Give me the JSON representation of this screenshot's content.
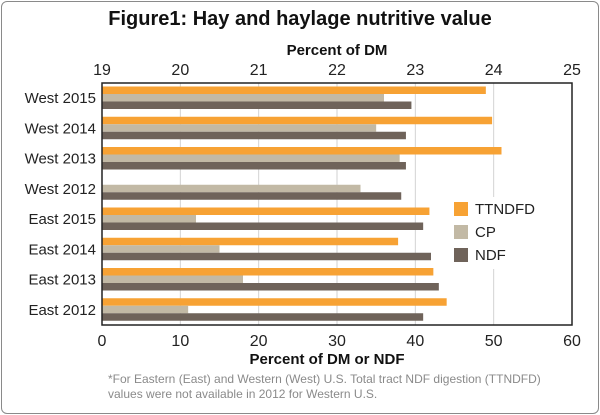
{
  "title": "Figure1: Hay and haylage nutritive value",
  "footnote": "*For Eastern (East) and Western (West) U.S. Total tract NDF digestion (TTNDFD) values were not available in 2012 for Western U.S.",
  "chart_data": {
    "type": "bar",
    "orientation": "horizontal",
    "categories": [
      "West 2015",
      "West 2014",
      "West 2013",
      "West 2012",
      "East 2015",
      "East 2014",
      "East 2013",
      "East 2012"
    ],
    "series": [
      {
        "name": "TTNDFD",
        "color": "#f7a234",
        "axis": "bottom",
        "values": [
          49,
          49.8,
          51,
          null,
          41.8,
          37.8,
          42.3,
          44
        ]
      },
      {
        "name": "CP",
        "color": "#c2b9a5",
        "axis": "top",
        "values": [
          22.6,
          22.5,
          22.8,
          22.3,
          20.2,
          20.5,
          20.8,
          20.1
        ]
      },
      {
        "name": "NDF",
        "color": "#6f635a",
        "axis": "bottom",
        "values": [
          39.5,
          38.8,
          38.8,
          38.2,
          41,
          42,
          43,
          41
        ]
      }
    ],
    "top_axis": {
      "label": "Percent of DM",
      "range": [
        19,
        25
      ],
      "ticks": [
        19,
        20,
        21,
        22,
        23,
        24,
        25
      ]
    },
    "bottom_axis": {
      "label": "Percent of DM or NDF",
      "range": [
        0,
        60
      ],
      "ticks": [
        0,
        10,
        20,
        30,
        40,
        50,
        60
      ]
    },
    "grid": true,
    "legend": {
      "position": "right"
    }
  }
}
